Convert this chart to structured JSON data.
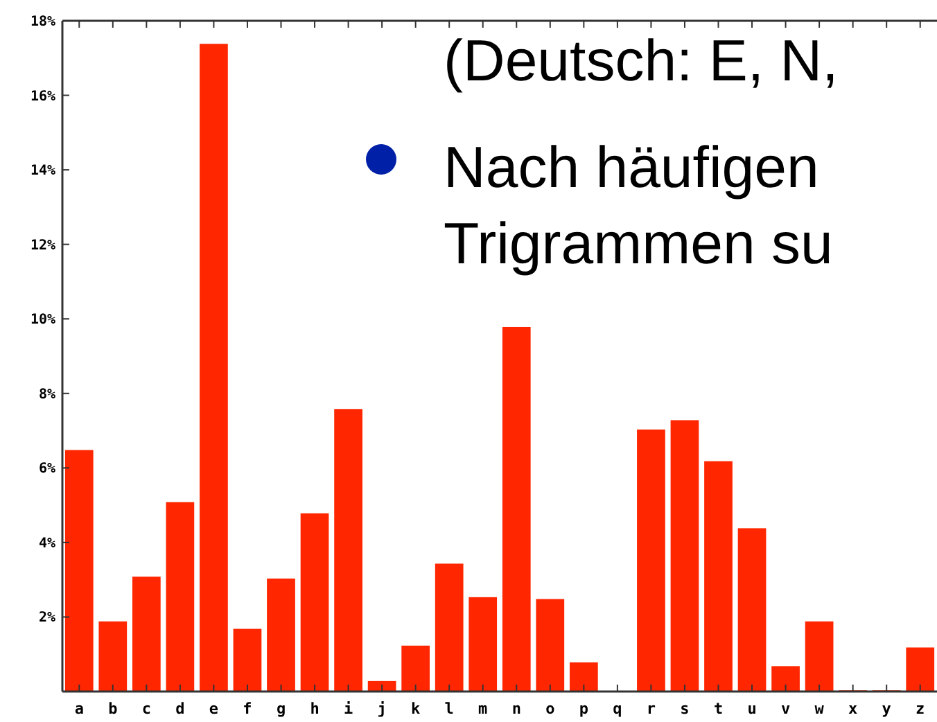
{
  "chart_data": {
    "type": "bar",
    "categories": [
      "a",
      "b",
      "c",
      "d",
      "e",
      "f",
      "g",
      "h",
      "i",
      "j",
      "k",
      "l",
      "m",
      "n",
      "o",
      "p",
      "q",
      "r",
      "s",
      "t",
      "u",
      "v",
      "w",
      "x",
      "y",
      "z"
    ],
    "values": [
      6.5,
      1.9,
      3.1,
      5.1,
      17.4,
      1.7,
      3.05,
      4.8,
      7.6,
      0.3,
      1.25,
      3.45,
      2.55,
      9.8,
      2.5,
      0.8,
      0,
      7.05,
      7.3,
      6.2,
      4.4,
      0.7,
      1.9,
      0.05,
      0.05,
      1.2
    ],
    "color": "#ff2600",
    "ylim": [
      0,
      18
    ],
    "yticks": [
      {
        "value": 2,
        "label": "2%"
      },
      {
        "value": 4,
        "label": "4%"
      },
      {
        "value": 6,
        "label": "6%"
      },
      {
        "value": 8,
        "label": "8%"
      },
      {
        "value": 10,
        "label": "10%"
      },
      {
        "value": 12,
        "label": "12%"
      },
      {
        "value": 14,
        "label": "14%"
      },
      {
        "value": 16,
        "label": "16%"
      },
      {
        "value": 18,
        "label": "18%"
      }
    ],
    "annotations": [
      "(Deutsch: E, N,",
      "Nach häufigen",
      "Trigrammen su"
    ]
  }
}
